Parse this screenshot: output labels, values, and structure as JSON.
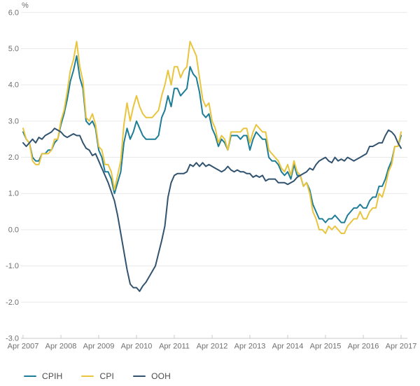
{
  "page": {
    "background": "#ffffff"
  },
  "chart_data": {
    "type": "line",
    "title": "",
    "ylabel": "%",
    "xlabel": "",
    "ylim": [
      -3.0,
      6.0
    ],
    "y_ticks": [
      6.0,
      5.0,
      4.0,
      3.0,
      2.0,
      1.0,
      0.0,
      -1.0,
      -2.0,
      -3.0
    ],
    "x_tick_labels": [
      "Apr 2007",
      "Apr 2008",
      "Apr 2009",
      "Apr 2010",
      "Apr 2011",
      "Apr 2012",
      "Apr 2013",
      "Apr 2014",
      "Apr 2015",
      "Apr 2016",
      "Apr 2017"
    ],
    "x": {
      "start": "Apr 2007",
      "end": "Apr 2017",
      "frequency": "monthly",
      "points": 121
    },
    "grid": "horizontal",
    "legend_position": "bottom-left",
    "style": {
      "grid_color": "#e9e9e9",
      "axis_color": "#c8c8c8",
      "tick_text_color": "#6e6e6e",
      "line_width": 2
    },
    "series": [
      {
        "name": "CPIH",
        "color": "#1e7d96",
        "values": [
          2.7,
          2.5,
          2.4,
          2.0,
          1.9,
          1.9,
          2.1,
          2.1,
          2.2,
          2.2,
          2.4,
          2.5,
          2.9,
          3.2,
          3.6,
          4.1,
          4.4,
          4.8,
          4.2,
          3.9,
          3.0,
          2.9,
          3.0,
          2.8,
          2.2,
          2.0,
          1.6,
          1.6,
          1.4,
          1.0,
          1.3,
          1.6,
          2.4,
          2.8,
          2.5,
          2.7,
          3.0,
          2.8,
          2.6,
          2.5,
          2.5,
          2.5,
          2.5,
          2.6,
          3.1,
          3.3,
          3.7,
          3.4,
          3.9,
          3.9,
          3.7,
          3.8,
          3.9,
          4.5,
          4.3,
          4.2,
          3.8,
          3.2,
          3.1,
          3.2,
          2.8,
          2.6,
          2.3,
          2.5,
          2.4,
          2.2,
          2.6,
          2.6,
          2.6,
          2.5,
          2.6,
          2.6,
          2.2,
          2.5,
          2.7,
          2.6,
          2.5,
          2.5,
          2.0,
          1.9,
          1.9,
          1.8,
          1.6,
          1.5,
          1.6,
          1.4,
          1.8,
          1.5,
          1.5,
          1.2,
          1.3,
          1.1,
          0.7,
          0.5,
          0.3,
          0.3,
          0.2,
          0.3,
          0.3,
          0.4,
          0.3,
          0.2,
          0.2,
          0.4,
          0.5,
          0.6,
          0.6,
          0.7,
          0.6,
          0.6,
          0.8,
          0.9,
          0.9,
          1.2,
          1.2,
          1.4,
          1.7,
          1.9,
          2.3,
          2.3,
          2.6
        ]
      },
      {
        "name": "CPI",
        "color": "#e9c53e",
        "values": [
          2.8,
          2.5,
          2.4,
          1.9,
          1.8,
          1.8,
          2.1,
          2.1,
          2.1,
          2.2,
          2.5,
          2.5,
          3.0,
          3.3,
          3.8,
          4.4,
          4.7,
          5.2,
          4.5,
          4.1,
          3.1,
          3.0,
          3.2,
          2.9,
          2.3,
          2.2,
          1.8,
          1.8,
          1.6,
          1.1,
          1.5,
          1.9,
          2.9,
          3.5,
          3.0,
          3.4,
          3.7,
          3.4,
          3.2,
          3.1,
          3.1,
          3.1,
          3.2,
          3.3,
          3.7,
          4.0,
          4.4,
          4.0,
          4.5,
          4.5,
          4.2,
          4.4,
          4.5,
          5.2,
          5.0,
          4.8,
          4.2,
          3.6,
          3.4,
          3.5,
          3.0,
          2.8,
          2.4,
          2.6,
          2.5,
          2.2,
          2.7,
          2.7,
          2.7,
          2.7,
          2.8,
          2.8,
          2.4,
          2.7,
          2.9,
          2.8,
          2.7,
          2.7,
          2.2,
          2.1,
          2.0,
          1.9,
          1.7,
          1.6,
          1.8,
          1.5,
          1.9,
          1.6,
          1.5,
          1.2,
          1.3,
          1.0,
          0.5,
          0.3,
          0.0,
          0.0,
          -0.1,
          0.1,
          0.0,
          0.1,
          0.0,
          -0.1,
          -0.1,
          0.1,
          0.2,
          0.3,
          0.3,
          0.5,
          0.3,
          0.3,
          0.5,
          0.6,
          0.6,
          1.0,
          0.9,
          1.2,
          1.6,
          1.8,
          2.3,
          2.3,
          2.7
        ]
      },
      {
        "name": "OOH",
        "color": "#32536f",
        "values": [
          2.4,
          2.3,
          2.4,
          2.5,
          2.4,
          2.55,
          2.5,
          2.6,
          2.65,
          2.7,
          2.8,
          2.75,
          2.7,
          2.6,
          2.55,
          2.6,
          2.65,
          2.6,
          2.6,
          2.4,
          2.25,
          2.2,
          2.05,
          2.1,
          1.9,
          1.7,
          1.5,
          1.3,
          1.05,
          0.8,
          0.4,
          -0.1,
          -0.6,
          -1.1,
          -1.5,
          -1.6,
          -1.6,
          -1.7,
          -1.55,
          -1.45,
          -1.3,
          -1.15,
          -1.0,
          -0.65,
          -0.3,
          0.1,
          0.9,
          1.3,
          1.5,
          1.55,
          1.55,
          1.55,
          1.6,
          1.8,
          1.75,
          1.85,
          1.75,
          1.85,
          1.75,
          1.8,
          1.75,
          1.7,
          1.65,
          1.6,
          1.65,
          1.75,
          1.65,
          1.6,
          1.65,
          1.6,
          1.6,
          1.55,
          1.55,
          1.45,
          1.5,
          1.45,
          1.5,
          1.35,
          1.4,
          1.4,
          1.4,
          1.3,
          1.3,
          1.3,
          1.25,
          1.3,
          1.35,
          1.45,
          1.5,
          1.55,
          1.6,
          1.7,
          1.65,
          1.8,
          1.9,
          1.95,
          2.0,
          1.9,
          1.85,
          2.0,
          1.9,
          1.95,
          1.9,
          2.0,
          1.95,
          1.9,
          1.95,
          2.0,
          2.05,
          2.1,
          2.3,
          2.3,
          2.35,
          2.4,
          2.4,
          2.6,
          2.75,
          2.7,
          2.6,
          2.4,
          2.25
        ]
      }
    ]
  }
}
